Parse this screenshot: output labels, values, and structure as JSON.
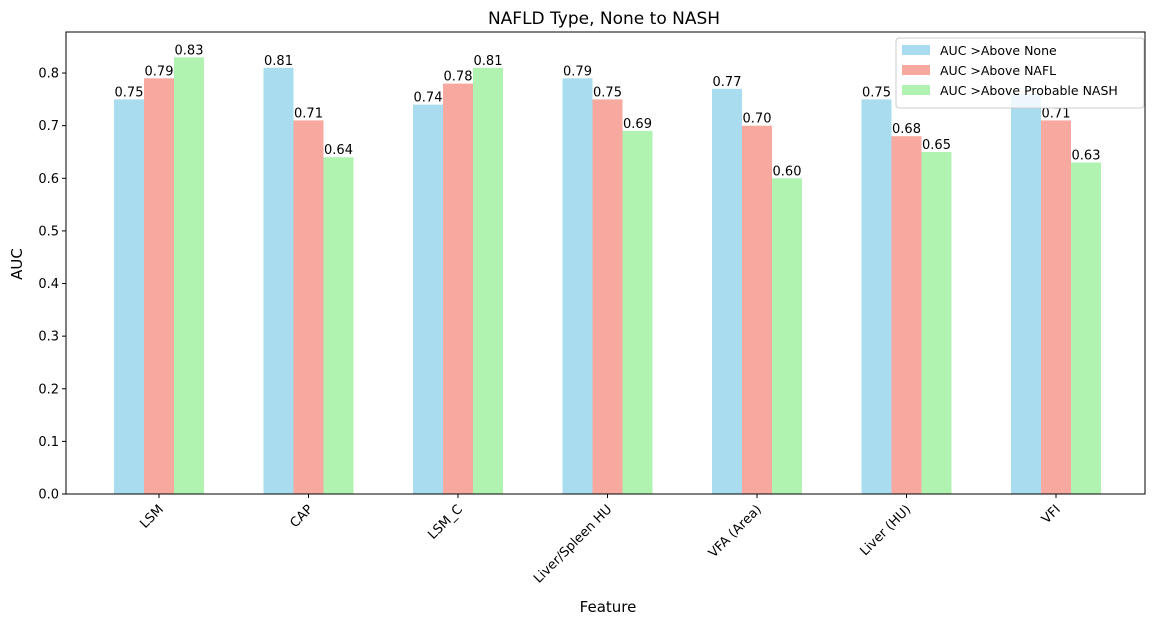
{
  "chart_data": {
    "type": "bar",
    "title": "NAFLD Type, None to NASH",
    "xlabel": "Feature",
    "ylabel": "AUC",
    "categories": [
      "LSM",
      "CAP",
      "LSM_C",
      "Liver/Spleen HU",
      "VFA (Area)",
      "Liver (HU)",
      "VFI"
    ],
    "series": [
      {
        "name": "AUC >Above None",
        "color": "#a8dcee",
        "values": [
          0.75,
          0.81,
          0.74,
          0.79,
          0.77,
          0.75,
          0.76
        ],
        "labels": [
          "0.75",
          "0.81",
          "0.74",
          "0.79",
          "0.77",
          "0.75",
          ""
        ]
      },
      {
        "name": "AUC >Above NAFL",
        "color": "#f8a99f",
        "values": [
          0.79,
          0.71,
          0.78,
          0.75,
          0.7,
          0.68,
          0.71
        ],
        "labels": [
          "0.79",
          "0.71",
          "0.78",
          "0.75",
          "0.70",
          "0.68",
          "0.71"
        ]
      },
      {
        "name": "AUC >Above Probable NASH",
        "color": "#b0f3b0",
        "values": [
          0.83,
          0.64,
          0.81,
          0.69,
          0.6,
          0.65,
          0.63
        ],
        "labels": [
          "0.83",
          "0.64",
          "0.81",
          "0.69",
          "0.60",
          "0.65",
          "0.63"
        ]
      }
    ],
    "ylim": [
      0,
      0.878
    ],
    "yticks": [
      "0.0",
      "0.1",
      "0.2",
      "0.3",
      "0.4",
      "0.5",
      "0.6",
      "0.7",
      "0.8"
    ],
    "grid": false,
    "legend": "top-right"
  }
}
